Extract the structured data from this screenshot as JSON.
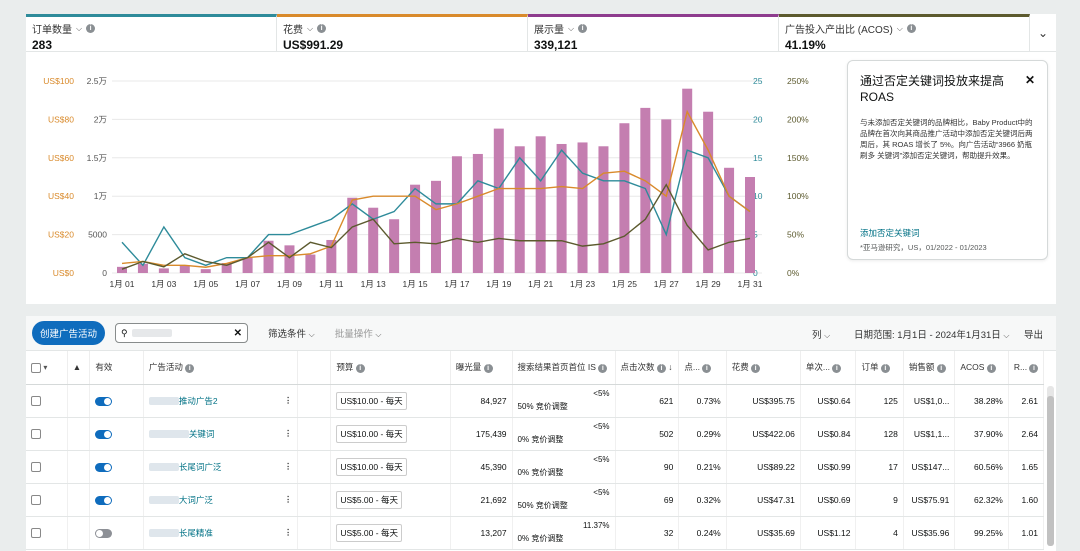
{
  "metrics": [
    {
      "label": "订单数量",
      "value": "283",
      "color": "#2e8b9a"
    },
    {
      "label": "花费",
      "value": "US$991.29",
      "color": "#d98a2b"
    },
    {
      "label": "展示量",
      "value": "339,121",
      "color": "#8e3c8e"
    },
    {
      "label": "广告投入产出比 (ACOS)",
      "value": "41.19%",
      "color": "#5c5a2e"
    }
  ],
  "chart_data": {
    "type": "bar",
    "categories": [
      "1月 01",
      "1月 02",
      "1月 03",
      "1月 04",
      "1月 05",
      "1月 06",
      "1月 07",
      "1月 08",
      "1月 09",
      "1月 10",
      "1月 11",
      "1月 12",
      "1月 13",
      "1月 14",
      "1月 15",
      "1月 16",
      "1月 17",
      "1月 18",
      "1月 19",
      "1月 20",
      "1月 21",
      "1月 22",
      "1月 23",
      "1月 24",
      "1月 25",
      "1月 26",
      "1月 27",
      "1月 28",
      "1月 29",
      "1月 30",
      "1月 31"
    ],
    "x_tick_labels": [
      "1月 01",
      "1月 03",
      "1月 05",
      "1月 07",
      "1月 09",
      "1月 11",
      "1月 13",
      "1月 15",
      "1月 17",
      "1月 19",
      "1月 21",
      "1月 23",
      "1月 25",
      "1月 27",
      "1月 29",
      "1月 31"
    ],
    "y_axes": {
      "spend": {
        "ticks": [
          "US$0",
          "US$20",
          "US$40",
          "US$60",
          "US$80",
          "US$100"
        ],
        "range": [
          0,
          100
        ],
        "color": "#d98a2b"
      },
      "impressions": {
        "ticks": [
          "0",
          "5000",
          "1万",
          "1.5万",
          "2万",
          "2.5万"
        ],
        "range": [
          0,
          25000
        ],
        "color": "#555555"
      },
      "orders": {
        "ticks": [
          "0",
          "5",
          "10",
          "15",
          "20",
          "25"
        ],
        "range": [
          0,
          25
        ],
        "color": "#2e8b9a"
      },
      "acos": {
        "ticks": [
          "0%",
          "50%",
          "100%",
          "150%",
          "200%",
          "250%"
        ],
        "range": [
          0,
          250
        ],
        "color": "#5c5a2e"
      }
    },
    "series": [
      {
        "name": "展示量",
        "type": "bar",
        "axis": "impressions",
        "color": "#c47eb0",
        "values": [
          800,
          1200,
          600,
          1000,
          500,
          1300,
          2000,
          4200,
          3600,
          2400,
          4300,
          9800,
          8500,
          7000,
          11500,
          12000,
          15200,
          15500,
          18800,
          16500,
          17800,
          16800,
          17000,
          16500,
          19500,
          21500,
          20000,
          24000,
          21000,
          13700,
          12500
        ]
      },
      {
        "name": "订单数量",
        "type": "line",
        "axis": "orders",
        "color": "#2e8b9a",
        "values": [
          4,
          1,
          6,
          2,
          1,
          2,
          2,
          5,
          5,
          6,
          7,
          9,
          7,
          8,
          11,
          9,
          9,
          12,
          11,
          15,
          12,
          16,
          13,
          12,
          12,
          11,
          5,
          16,
          15,
          10,
          8
        ]
      },
      {
        "name": "花费",
        "type": "line",
        "axis": "spend",
        "color": "#d98a2b",
        "values": [
          5,
          6,
          4,
          4,
          3,
          5,
          8,
          9,
          9,
          10,
          14,
          38,
          40,
          40,
          40,
          33,
          36,
          40,
          44,
          44,
          44,
          45,
          44,
          52,
          53,
          48,
          40,
          84,
          64,
          40,
          32
        ]
      },
      {
        "name": "广告投入产出比 (ACOS)",
        "type": "line",
        "axis": "acos",
        "color": "#5c5a2e",
        "values": [
          5,
          15,
          8,
          25,
          15,
          10,
          20,
          40,
          20,
          40,
          33,
          60,
          70,
          38,
          40,
          38,
          45,
          40,
          45,
          42,
          42,
          42,
          35,
          38,
          48,
          70,
          115,
          62,
          30,
          40,
          45
        ]
      }
    ]
  },
  "tip": {
    "title": "通过否定关键词投放来提高 ROAS",
    "body": "与未添加否定关键词的品牌相比，Baby Product中的品牌在首次向其商品推广活动中添加否定关键词后两周后，其 ROAS 增长了 5%。向广告活动“3966 奶瓶刷多 关键词”添加否定关键词，帮助提升效果。",
    "link": "添加否定关键词",
    "note": "*亚马逊研究，US，01/2022 - 01/2023"
  },
  "toolbar": {
    "create": "创建广告活动",
    "filter": "筛选条件",
    "bulk": "批量操作",
    "columns": "列",
    "date_range": "日期范围: 1月1日 - 2024年1月31日",
    "export": "导出"
  },
  "table": {
    "headers": [
      "有效",
      "广告活动",
      "预算",
      "曝光量",
      "搜索结果首页首位 IS",
      "点击次数",
      "点...",
      "花费",
      "单次...",
      "订单",
      "销售额",
      "ACOS",
      "R..."
    ],
    "rows": [
      {
        "enabled": true,
        "name": "推动广告2",
        "budget": "US$10.00 - 每天",
        "impr": "84,927",
        "is": "<5%",
        "bid": "50% 竞价调整",
        "clicks": "621",
        "ctr": "0.73%",
        "spend": "US$395.75",
        "cpc": "US$0.64",
        "orders": "125",
        "sales": "US$1,0...",
        "acos": "38.28%",
        "roas": "2.61"
      },
      {
        "enabled": true,
        "name": "关键词",
        "budget": "US$10.00 - 每天",
        "impr": "175,439",
        "is": "<5%",
        "bid": "0% 竞价调整",
        "clicks": "502",
        "ctr": "0.29%",
        "spend": "US$422.06",
        "cpc": "US$0.84",
        "orders": "128",
        "sales": "US$1,1...",
        "acos": "37.90%",
        "roas": "2.64"
      },
      {
        "enabled": true,
        "name": "长尾词广泛",
        "budget": "US$10.00 - 每天",
        "impr": "45,390",
        "is": "<5%",
        "bid": "0% 竞价调整",
        "clicks": "90",
        "ctr": "0.21%",
        "spend": "US$89.22",
        "cpc": "US$0.99",
        "orders": "17",
        "sales": "US$147...",
        "acos": "60.56%",
        "roas": "1.65"
      },
      {
        "enabled": true,
        "name": "大词广泛",
        "budget": "US$5.00 - 每天",
        "impr": "21,692",
        "is": "<5%",
        "bid": "50% 竞价调整",
        "clicks": "69",
        "ctr": "0.32%",
        "spend": "US$47.31",
        "cpc": "US$0.69",
        "orders": "9",
        "sales": "US$75.91",
        "acos": "62.32%",
        "roas": "1.60"
      },
      {
        "enabled": false,
        "name": "长尾精准",
        "budget": "US$5.00 - 每天",
        "impr": "13,207",
        "is": "11.37%",
        "bid": "0% 竞价调整",
        "clicks": "32",
        "ctr": "0.24%",
        "spend": "US$35.69",
        "cpc": "US$1.12",
        "orders": "4",
        "sales": "US$35.96",
        "acos": "99.25%",
        "roas": "1.01"
      }
    ]
  }
}
